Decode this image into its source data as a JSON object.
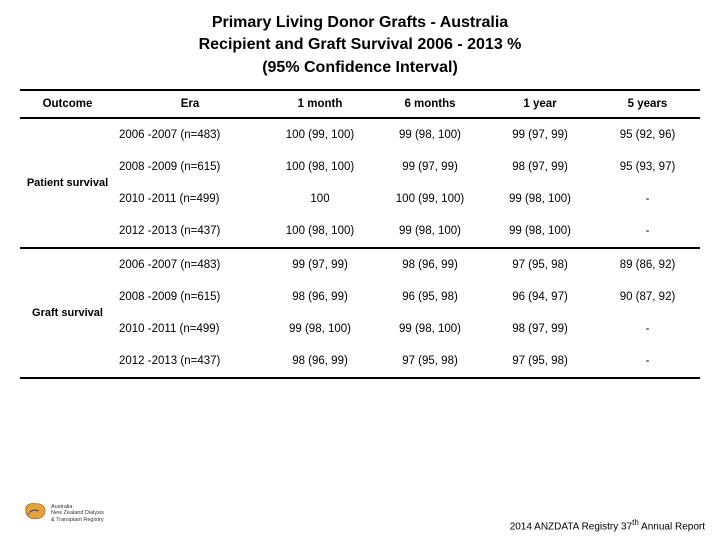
{
  "title": {
    "line1": "Primary Living Donor Grafts - Australia",
    "line2": "Recipient and Graft Survival 2006 - 2013 %",
    "line3": "(95% Confidence Interval)"
  },
  "columns": [
    "Outcome",
    "Era",
    "1 month",
    "6 months",
    "1 year",
    "5 years"
  ],
  "groups": [
    {
      "outcome": "Patient survival",
      "rows": [
        {
          "era": "2006 -2007 (n=483)",
          "m1": "100 (99, 100)",
          "m6": "99 (98, 100)",
          "y1": "99 (97, 99)",
          "y5": "95 (92, 96)"
        },
        {
          "era": "2008 -2009 (n=615)",
          "m1": "100 (98, 100)",
          "m6": "99 (97, 99)",
          "y1": "98 (97, 99)",
          "y5": "95 (93, 97)"
        },
        {
          "era": "2010 -2011 (n=499)",
          "m1": "100",
          "m6": "100 (99, 100)",
          "y1": "99 (98, 100)",
          "y5": "-"
        },
        {
          "era": "2012 -2013 (n=437)",
          "m1": "100 (98, 100)",
          "m6": "99 (98, 100)",
          "y1": "99 (98, 100)",
          "y5": "-"
        }
      ]
    },
    {
      "outcome": "Graft survival",
      "rows": [
        {
          "era": "2006 -2007 (n=483)",
          "m1": "99 (97, 99)",
          "m6": "98 (96, 99)",
          "y1": "97 (95, 98)",
          "y5": "89 (86, 92)"
        },
        {
          "era": "2008 -2009 (n=615)",
          "m1": "98 (96, 99)",
          "m6": "96 (95, 98)",
          "y1": "96 (94, 97)",
          "y5": "90 (87, 92)"
        },
        {
          "era": "2010 -2011 (n=499)",
          "m1": "99 (98, 100)",
          "m6": "99 (98, 100)",
          "y1": "98 (97, 99)",
          "y5": "-"
        },
        {
          "era": "2012 -2013 (n=437)",
          "m1": "98 (96, 99)",
          "m6": "97 (95, 98)",
          "y1": "97 (95, 98)",
          "y5": "-"
        }
      ]
    }
  ],
  "footer": {
    "prefix": "2014 ANZDATA Registry 37",
    "sup": "th",
    "suffix": " Annual Report"
  },
  "logo": {
    "text": "Australia\nNew Zealand Dialysis\n& Transplant Registry"
  },
  "style": {
    "column_widths": [
      "95px",
      "150px",
      "110px",
      "110px",
      "110px",
      "105px"
    ]
  }
}
